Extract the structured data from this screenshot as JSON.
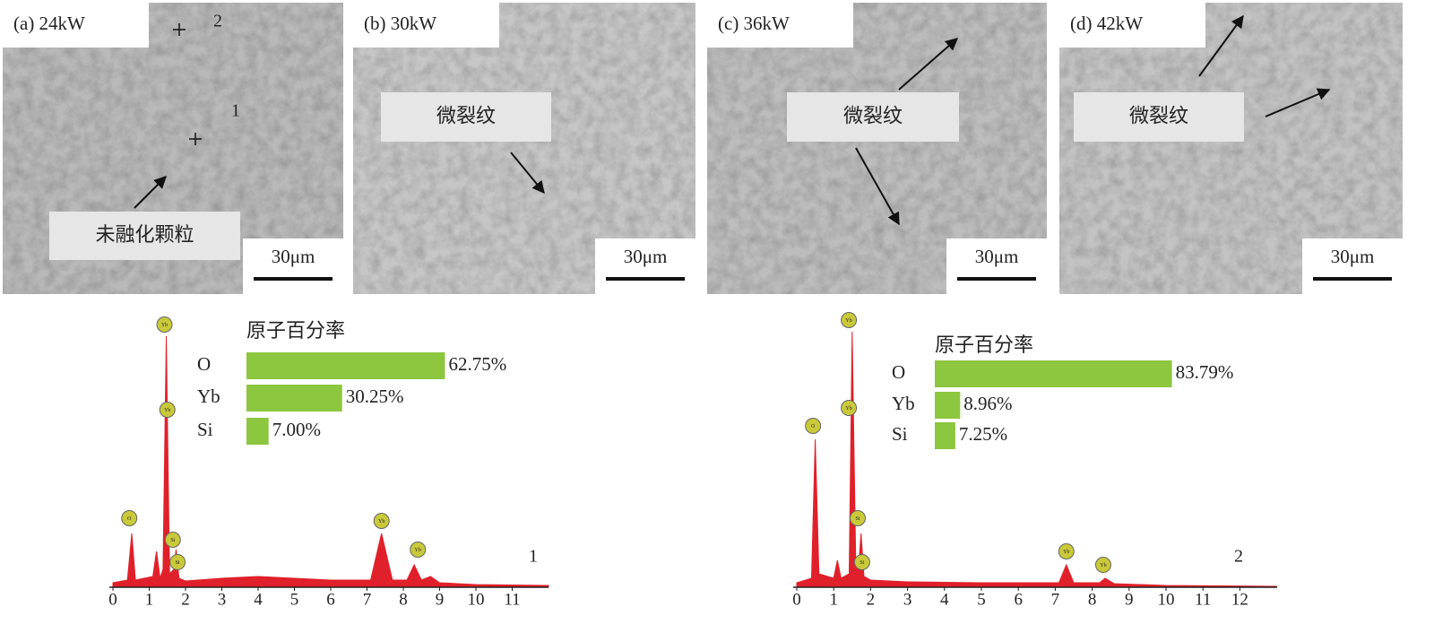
{
  "panels": [
    {
      "label": "(a) 24kW",
      "scale": "30μm",
      "annotation": "未融化颗粒",
      "point_labels": [
        "2",
        "1"
      ]
    },
    {
      "label": "(b) 30kW",
      "scale": "30μm",
      "annotation": "微裂纹"
    },
    {
      "label": "(c) 36kW",
      "scale": "30μm",
      "annotation": "微裂纹"
    },
    {
      "label": "(d) 42kW",
      "scale": "30μm",
      "annotation": "微裂纹"
    }
  ],
  "chart_data": [
    {
      "type": "spectrum",
      "label": "1",
      "xlim": [
        0,
        12
      ],
      "xticks": [
        0,
        1,
        2,
        3,
        4,
        5,
        6,
        7,
        8,
        9,
        10,
        11
      ],
      "ylim": [
        0,
        300
      ],
      "color": "#e0202a",
      "spectrum": {
        "x": [
          0,
          0.4,
          0.52,
          0.62,
          1.1,
          1.2,
          1.3,
          1.38,
          1.47,
          1.56,
          1.68,
          1.74,
          1.82,
          2.0,
          3,
          4,
          5,
          6,
          7.1,
          7.4,
          7.7,
          8.1,
          8.3,
          8.5,
          8.75,
          9.0,
          10,
          12
        ],
        "values": [
          5,
          8,
          60,
          8,
          12,
          40,
          10,
          20,
          280,
          15,
          20,
          42,
          10,
          7,
          10,
          12,
          10,
          8,
          8,
          60,
          8,
          8,
          25,
          8,
          12,
          5,
          3,
          2
        ]
      },
      "peaks": [
        {
          "label": "O",
          "x": 0.45,
          "y": 77
        },
        {
          "label": "Yb",
          "x": 1.42,
          "y": 293
        },
        {
          "label": "Yb",
          "x": 1.5,
          "y": 198
        },
        {
          "label": "Si",
          "x": 1.65,
          "y": 53
        },
        {
          "label": "Si",
          "x": 1.78,
          "y": 28
        },
        {
          "label": "Yb",
          "x": 7.4,
          "y": 74
        },
        {
          "label": "Yb",
          "x": 8.4,
          "y": 42
        }
      ],
      "bar": {
        "type": "bar",
        "title": "原子百分率",
        "categories": [
          "O",
          "Yb",
          "Si"
        ],
        "values": [
          62.75,
          30.25,
          7.0
        ],
        "value_labels": [
          "62.75%",
          "30.25%",
          "7.00%"
        ],
        "color": "#8dc63f",
        "xlim": [
          0,
          85
        ]
      }
    },
    {
      "type": "spectrum",
      "label": "2",
      "xlim": [
        0,
        13
      ],
      "xticks": [
        0,
        1,
        2,
        3,
        4,
        5,
        6,
        7,
        8,
        9,
        10,
        11,
        12
      ],
      "ylim": [
        0,
        300
      ],
      "color": "#e0202a",
      "spectrum": {
        "x": [
          0,
          0.4,
          0.5,
          0.6,
          1.0,
          1.1,
          1.2,
          1.42,
          1.5,
          1.6,
          1.68,
          1.74,
          1.82,
          2.0,
          3,
          5,
          7.1,
          7.3,
          7.5,
          8.2,
          8.35,
          8.6,
          10,
          13
        ],
        "values": [
          5,
          10,
          165,
          15,
          10,
          30,
          10,
          15,
          285,
          20,
          25,
          60,
          12,
          8,
          6,
          5,
          5,
          25,
          5,
          5,
          10,
          4,
          2,
          1
        ]
      },
      "peaks": [
        {
          "label": "O",
          "x": 0.44,
          "y": 180
        },
        {
          "label": "Yb",
          "x": 1.41,
          "y": 298
        },
        {
          "label": "Yb",
          "x": 1.41,
          "y": 200
        },
        {
          "label": "Si",
          "x": 1.65,
          "y": 77
        },
        {
          "label": "Si",
          "x": 1.77,
          "y": 28
        },
        {
          "label": "Yb",
          "x": 7.3,
          "y": 40
        },
        {
          "label": "Yb",
          "x": 8.3,
          "y": 25
        }
      ],
      "bar": {
        "type": "bar",
        "title": "原子百分率",
        "categories": [
          "O",
          "Yb",
          "Si"
        ],
        "values": [
          83.79,
          8.96,
          7.25
        ],
        "value_labels": [
          "83.79%",
          "8.96%",
          "7.25%"
        ],
        "color": "#8dc63f",
        "xlim": [
          0,
          95
        ]
      }
    }
  ]
}
